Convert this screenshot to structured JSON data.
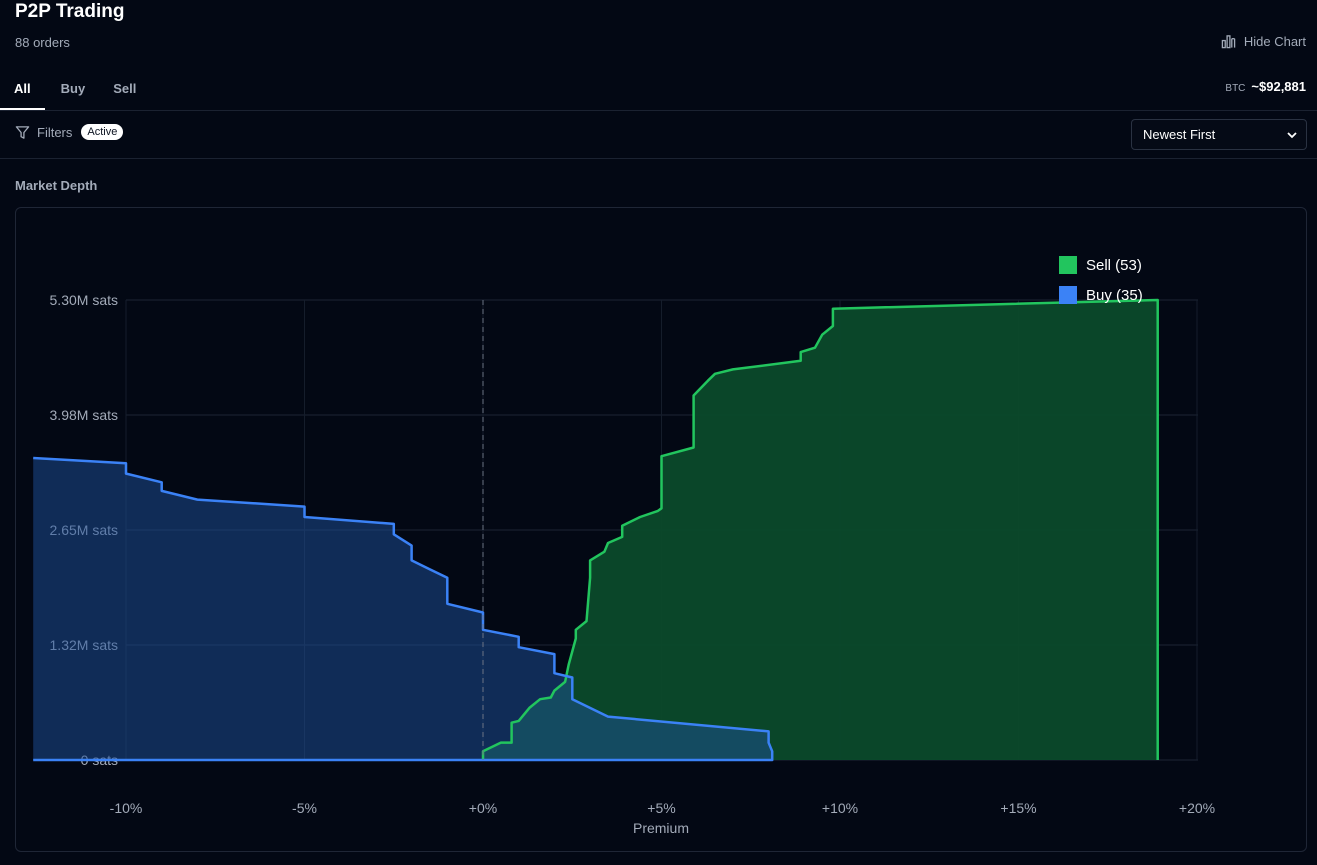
{
  "header": {
    "title": "P2P Trading",
    "order_count": "88 orders",
    "hide_chart_label": "Hide Chart"
  },
  "tabs": [
    {
      "label": "All",
      "active": true
    },
    {
      "label": "Buy",
      "active": false
    },
    {
      "label": "Sell",
      "active": false
    }
  ],
  "price": {
    "ticker": "BTC",
    "value": "~$92,881"
  },
  "filters": {
    "label": "Filters",
    "badge": "Active"
  },
  "sort": {
    "selected": "Newest First"
  },
  "section": {
    "label": "Market Depth"
  },
  "icons": {
    "hide_chart": "bar-chart-icon",
    "filters": "funnel-icon",
    "sort": "chevron-down-icon"
  },
  "colors": {
    "sell": "#22c55e",
    "buy": "#3b82f6",
    "background": "#030814"
  },
  "chart_data": {
    "type": "area",
    "title": "",
    "xlabel": "Premium",
    "ylabel": "",
    "xlim": [
      -12.6,
      20
    ],
    "ylim": [
      0,
      5.3
    ],
    "x_ticks": [
      -10,
      -5,
      0,
      5,
      10,
      15,
      20
    ],
    "x_tick_labels": [
      "-10%",
      "-5%",
      "+0%",
      "+5%",
      "+10%",
      "+15%",
      "+20%"
    ],
    "y_ticks": [
      0,
      1.325,
      2.65,
      3.975,
      5.3
    ],
    "y_tick_labels": [
      "0 sats",
      "1.32M sats",
      "2.65M sats",
      "3.98M sats",
      "5.30M sats"
    ],
    "grid": true,
    "zero_line": 0,
    "legend_position": "top-right",
    "series": [
      {
        "name": "Sell (53)",
        "color": "#22c55e",
        "x": [
          0.0,
          0.0,
          0.5,
          0.8,
          0.8,
          1.0,
          1.3,
          1.3,
          1.6,
          1.9,
          2.0,
          2.3,
          2.4,
          2.6,
          2.6,
          2.9,
          3.0,
          3.0,
          3.4,
          3.5,
          3.9,
          3.9,
          4.4,
          4.9,
          5.0,
          5.0,
          5.9,
          5.9,
          6.3,
          6.5,
          7.0,
          8.9,
          8.9,
          9.3,
          9.5,
          9.8,
          9.8,
          18.9,
          18.9
        ],
        "y": [
          0.0,
          0.1,
          0.2,
          0.2,
          0.43,
          0.45,
          0.6,
          0.6,
          0.7,
          0.72,
          0.8,
          0.9,
          1.1,
          1.4,
          1.5,
          1.6,
          2.1,
          2.3,
          2.4,
          2.5,
          2.57,
          2.7,
          2.8,
          2.87,
          2.9,
          3.5,
          3.6,
          4.2,
          4.37,
          4.45,
          4.5,
          4.6,
          4.7,
          4.75,
          4.9,
          5.0,
          5.2,
          5.3,
          0.0
        ]
      },
      {
        "name": "Buy (35)",
        "color": "#3b82f6",
        "x": [
          -12.6,
          -10.0,
          -10.0,
          -9.0,
          -9.0,
          -8.0,
          -5.0,
          -5.0,
          -2.5,
          -2.5,
          -2.0,
          -2.0,
          -1.5,
          -1.0,
          -1.0,
          0.0,
          0.0,
          1.0,
          1.0,
          2.0,
          2.0,
          2.5,
          2.5,
          3.5,
          8.0,
          8.0,
          8.1,
          8.1
        ],
        "y": [
          3.48,
          3.42,
          3.3,
          3.2,
          3.1,
          3.0,
          2.92,
          2.8,
          2.72,
          2.6,
          2.47,
          2.3,
          2.2,
          2.1,
          1.8,
          1.7,
          1.5,
          1.42,
          1.3,
          1.22,
          1.0,
          0.95,
          0.7,
          0.5,
          0.33,
          0.2,
          0.1,
          0.0
        ]
      }
    ]
  }
}
